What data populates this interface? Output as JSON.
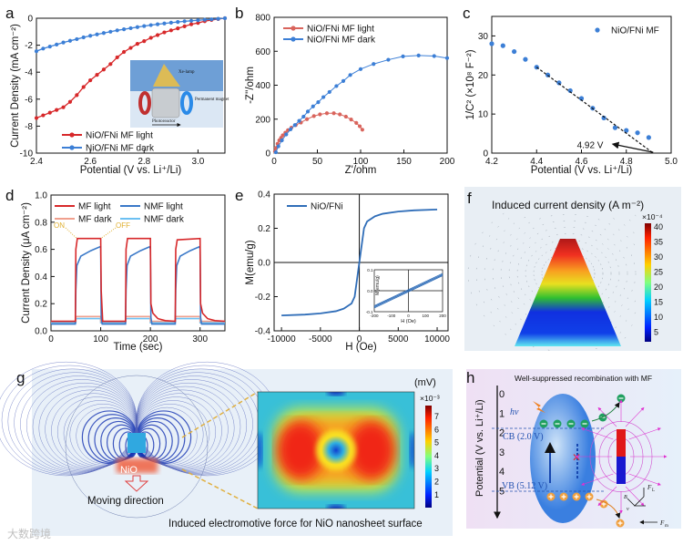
{
  "panel_labels": [
    "a",
    "b",
    "c",
    "d",
    "e",
    "f",
    "g",
    "h"
  ],
  "colors": {
    "red": "#d7282a",
    "blue": "#3c7fd6",
    "light_red": "#d9645c",
    "mf_dark": "#f0a08e",
    "nmf_light": "#3a78c8",
    "nmf_dark": "#6cc0f2",
    "onoff": "#e0b030"
  },
  "inset_a": {
    "lamp": "Xe-lamp",
    "magnet": "Permanent magnet",
    "reactor": "Photoreactor"
  },
  "chart_data": [
    {
      "id": "a",
      "type": "line",
      "xlabel": "Potential (V vs. Li⁺/Li)",
      "ylabel": "Current Density (mA cm⁻²)",
      "xlim": [
        2.4,
        3.1
      ],
      "ylim": [
        -10,
        0
      ],
      "xticks": [
        2.4,
        2.6,
        2.8,
        3.0
      ],
      "xticklabels": [
        "2.4",
        "2.6",
        "2.8",
        "3.0"
      ],
      "yticks": [
        0,
        -2,
        -4,
        -6,
        -8,
        -10
      ],
      "yticklabels": [
        "0",
        "-2",
        "-4",
        "-6",
        "-8",
        "-10"
      ],
      "legend": "bottom-left",
      "series": [
        {
          "name": "NiO/FNi MF light",
          "color": "#d7282a",
          "x": [
            2.4,
            2.425,
            2.45,
            2.475,
            2.5,
            2.525,
            2.55,
            2.575,
            2.6,
            2.625,
            2.65,
            2.675,
            2.7,
            2.725,
            2.75,
            2.775,
            2.8,
            2.825,
            2.85,
            2.875,
            2.9,
            2.925,
            2.95,
            2.975,
            3.0,
            3.025,
            3.05,
            3.075,
            3.1
          ],
          "y": [
            -7.4,
            -7.2,
            -7.0,
            -6.8,
            -6.6,
            -6.2,
            -5.7,
            -5.1,
            -4.6,
            -4.2,
            -3.8,
            -3.4,
            -2.9,
            -2.5,
            -2.2,
            -1.9,
            -1.7,
            -1.45,
            -1.25,
            -1.05,
            -0.9,
            -0.75,
            -0.6,
            -0.45,
            -0.35,
            -0.22,
            -0.13,
            -0.06,
            0
          ]
        },
        {
          "name": "NiO/FNi MF dark",
          "color": "#3c7fd6",
          "x": [
            2.4,
            2.425,
            2.45,
            2.475,
            2.5,
            2.525,
            2.55,
            2.575,
            2.6,
            2.625,
            2.65,
            2.675,
            2.7,
            2.725,
            2.75,
            2.775,
            2.8,
            2.825,
            2.85,
            2.875,
            2.9,
            2.925,
            2.95,
            2.975,
            3.0,
            3.025,
            3.05,
            3.075,
            3.1
          ],
          "y": [
            -2.45,
            -2.25,
            -2.1,
            -1.95,
            -1.8,
            -1.67,
            -1.55,
            -1.42,
            -1.3,
            -1.2,
            -1.1,
            -1.0,
            -0.9,
            -0.82,
            -0.74,
            -0.66,
            -0.58,
            -0.51,
            -0.45,
            -0.39,
            -0.33,
            -0.28,
            -0.23,
            -0.19,
            -0.15,
            -0.11,
            -0.08,
            -0.04,
            0
          ]
        }
      ]
    },
    {
      "id": "b",
      "type": "scatter",
      "xlabel": "Z'/ohm",
      "ylabel": "-Z''/ohm",
      "xlim": [
        0,
        200
      ],
      "ylim": [
        0,
        800
      ],
      "xticks": [
        0,
        50,
        100,
        150,
        200
      ],
      "xticklabels": [
        "0",
        "50",
        "100",
        "150",
        "200"
      ],
      "yticks": [
        0,
        200,
        400,
        600,
        800
      ],
      "yticklabels": [
        "0",
        "200",
        "400",
        "600",
        "800"
      ],
      "legend": "top-left",
      "series": [
        {
          "name": "NiO/FNi MF light",
          "color": "#d9645c",
          "x": [
            1,
            2,
            4,
            6,
            8,
            10,
            13,
            16,
            20,
            25,
            31,
            38,
            46,
            53,
            61,
            69,
            76,
            83,
            89,
            95,
            99,
            102
          ],
          "y": [
            10,
            30,
            55,
            75,
            90,
            105,
            120,
            135,
            150,
            165,
            180,
            200,
            218,
            228,
            235,
            235,
            228,
            215,
            198,
            178,
            158,
            138
          ]
        },
        {
          "name": "NiO/FNi MF dark",
          "color": "#3c7fd6",
          "x": [
            2,
            5,
            9,
            14,
            19,
            24,
            29,
            34,
            39,
            45,
            51,
            57,
            64,
            72,
            80,
            88,
            100,
            115,
            132,
            149,
            167,
            185,
            200
          ],
          "y": [
            5,
            40,
            75,
            110,
            140,
            165,
            190,
            215,
            245,
            275,
            300,
            330,
            360,
            395,
            425,
            460,
            495,
            525,
            550,
            570,
            575,
            572,
            560
          ]
        }
      ]
    },
    {
      "id": "c",
      "type": "scatter",
      "xlabel": "Potential (V vs. Li⁺/Li)",
      "ylabel": "1/C² (×10⁸ F⁻²)",
      "xlim": [
        4.2,
        5.0
      ],
      "ylim": [
        0,
        35
      ],
      "xticks": [
        4.2,
        4.4,
        4.6,
        4.8,
        5.0
      ],
      "xticklabels": [
        "4.2",
        "4.4",
        "4.6",
        "4.8",
        "5.0"
      ],
      "yticks": [
        0,
        10,
        20,
        30
      ],
      "yticklabels": [
        "0",
        "10",
        "20",
        "30"
      ],
      "legend": "top-right",
      "series": [
        {
          "name": "NiO/FNi MF",
          "color": "#3c7fd6",
          "x": [
            4.2,
            4.25,
            4.3,
            4.35,
            4.4,
            4.45,
            4.5,
            4.55,
            4.6,
            4.65,
            4.7,
            4.75,
            4.8,
            4.85,
            4.9
          ],
          "y": [
            28,
            27.5,
            26,
            24,
            22,
            20,
            18,
            16,
            14,
            11.5,
            9,
            6.5,
            5.8,
            5.2,
            4
          ]
        }
      ],
      "fit_line": {
        "x": [
          4.4,
          4.92
        ],
        "y": [
          22,
          0
        ]
      },
      "annotation": "4.92 V"
    },
    {
      "id": "d",
      "type": "line",
      "xlabel": "Time (sec)",
      "ylabel": "Current Density (μA cm⁻²)",
      "xlim": [
        0,
        350
      ],
      "ylim": [
        0,
        1.0
      ],
      "xticks": [
        0,
        100,
        200,
        300
      ],
      "xticklabels": [
        "0",
        "100",
        "200",
        "300"
      ],
      "yticks": [
        0,
        0.2,
        0.4,
        0.6,
        0.8,
        1.0
      ],
      "yticklabels": [
        "0.0",
        "0.2",
        "0.4",
        "0.6",
        "0.8",
        "1.0"
      ],
      "legend": "top",
      "annotations": [
        "ON",
        "OFF"
      ],
      "series": [
        {
          "name": "MF light",
          "color": "#d7282a",
          "x": [
            0,
            49,
            50,
            53,
            100,
            101,
            104,
            150,
            151,
            154,
            200,
            201,
            205,
            215,
            230,
            250,
            251,
            254,
            300,
            301,
            305,
            315,
            330,
            350
          ],
          "y": [
            0.07,
            0.07,
            0.6,
            0.68,
            0.68,
            0.3,
            0.07,
            0.07,
            0.6,
            0.68,
            0.68,
            0.2,
            0.13,
            0.09,
            0.075,
            0.07,
            0.6,
            0.67,
            0.68,
            0.2,
            0.13,
            0.09,
            0.075,
            0.07
          ]
        },
        {
          "name": "MF dark",
          "color": "#f0a08e",
          "x": [
            0,
            50,
            50,
            100,
            100,
            150,
            150,
            200,
            200,
            250,
            250,
            300,
            300,
            350
          ],
          "y": [
            0.07,
            0.07,
            0.105,
            0.105,
            0.07,
            0.07,
            0.105,
            0.105,
            0.07,
            0.07,
            0.105,
            0.105,
            0.07,
            0.07
          ]
        },
        {
          "name": "NMF light",
          "color": "#3a78c8",
          "x": [
            0,
            49,
            50,
            52,
            60,
            80,
            99,
            100,
            101,
            103,
            150,
            151,
            153,
            160,
            180,
            199,
            200,
            201,
            203,
            250,
            251,
            253,
            260,
            280,
            299,
            300,
            301,
            303,
            350
          ],
          "y": [
            0.05,
            0.05,
            0.3,
            0.48,
            0.55,
            0.59,
            0.62,
            0.62,
            0.1,
            0.05,
            0.05,
            0.3,
            0.48,
            0.55,
            0.59,
            0.62,
            0.6,
            0.1,
            0.05,
            0.05,
            0.3,
            0.48,
            0.55,
            0.59,
            0.62,
            0.6,
            0.1,
            0.05,
            0.05
          ]
        },
        {
          "name": "NMF dark",
          "color": "#6cc0f2",
          "x": [
            0,
            50,
            50,
            100,
            100,
            150,
            150,
            200,
            200,
            250,
            250,
            300,
            300,
            350
          ],
          "y": [
            0.06,
            0.06,
            0.09,
            0.09,
            0.06,
            0.06,
            0.09,
            0.09,
            0.06,
            0.06,
            0.09,
            0.09,
            0.06,
            0.06
          ]
        }
      ]
    },
    {
      "id": "e",
      "type": "line",
      "xlabel": "H (Oe)",
      "ylabel": "M(emu/g)",
      "xlim": [
        -10950,
        11400
      ],
      "ylim": [
        -0.4,
        0.4
      ],
      "xticks": [
        -10000,
        -5000,
        0,
        5000,
        10000
      ],
      "xticklabels": [
        "-10000",
        "-5000",
        "0",
        "5000",
        "10000"
      ],
      "yticks": [
        -0.4,
        -0.2,
        0,
        0.2,
        0.4
      ],
      "yticklabels": [
        "-0.4",
        "-0.2",
        "0.0",
        "0.2",
        "0.4"
      ],
      "legend": "top-left",
      "series": [
        {
          "name": "NiO/FNi",
          "color": "#2f6db8",
          "x": [
            -10000,
            -7000,
            -5000,
            -3000,
            -2000,
            -1000,
            -600,
            -300,
            0,
            300,
            600,
            1000,
            2000,
            3000,
            5000,
            7000,
            10000
          ],
          "y": [
            -0.31,
            -0.305,
            -0.298,
            -0.285,
            -0.27,
            -0.24,
            -0.2,
            -0.1,
            0,
            0.1,
            0.2,
            0.24,
            0.27,
            0.285,
            0.298,
            0.305,
            0.31
          ]
        }
      ],
      "inset": {
        "xlabel": "H (Oe)",
        "ylabel": "M(emu/g)",
        "xlim": [
          -200,
          200
        ],
        "ylim": [
          -0.1,
          0.1
        ],
        "xticklabels": [
          "-200",
          "-100",
          "0",
          "100",
          "200"
        ],
        "yticklabels": [
          "-0.1",
          "0.0",
          "0.1"
        ],
        "loops": [
          {
            "x": [
              -200,
              200
            ],
            "y": [
              -0.082,
              0.072
            ]
          },
          {
            "x": [
              -200,
              200
            ],
            "y": [
              -0.072,
              0.082
            ]
          },
          {
            "x": [
              -200,
              200
            ],
            "y": [
              -0.077,
              0.077
            ]
          }
        ]
      }
    },
    {
      "id": "f",
      "type": "heatmap",
      "title": "Induced current density (A m⁻²)",
      "colorbar": {
        "exponent": "×10⁻⁴",
        "ticks": [
          "40",
          "35",
          "30",
          "25",
          "20",
          "15",
          "10",
          "5"
        ],
        "range": [
          3,
          41
        ]
      }
    },
    {
      "id": "g",
      "type": "heatmap",
      "title": "Induced electromotive force for NiO nanosheet surface",
      "unit": "(mV)",
      "labels": {
        "material": "NiO",
        "direction": "Moving direction"
      },
      "colorbar": {
        "exponent": "×10⁻³",
        "ticks": [
          "7",
          "6",
          "5",
          "4",
          "3",
          "2",
          "1"
        ],
        "range": [
          0.3,
          7.8
        ]
      }
    }
  ],
  "panel_h": {
    "title": "Well-suppressed recombination with MF",
    "ylabel": "Potential (V vs. Li⁺/Li)",
    "yticks": [
      "0",
      "1",
      "2",
      "3",
      "4",
      "5"
    ],
    "hv": "hν",
    "cb": "CB (2.0 V)",
    "vb": "VB (5.12 V)",
    "forces": {
      "fl": "F",
      "fl_sub": "L",
      "fm": "F",
      "fm_sub": "m",
      "b": "B",
      "v": "v"
    }
  },
  "watermark": "大数跨境"
}
